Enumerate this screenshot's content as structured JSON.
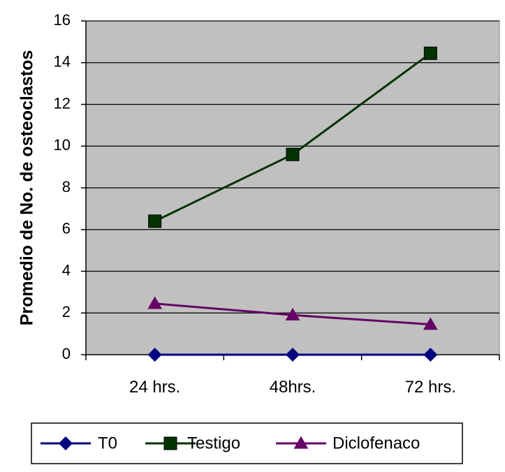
{
  "chart_data": {
    "type": "line",
    "title": "",
    "xlabel": "",
    "ylabel": "Promedio de No. de osteoclastos",
    "categories": [
      "24 hrs.",
      "48hrs.",
      "72 hrs."
    ],
    "ylim": [
      0,
      16
    ],
    "yticks": [
      0,
      2,
      4,
      6,
      8,
      10,
      12,
      14,
      16
    ],
    "grid": true,
    "legend_position": "bottom",
    "plot_background": "#c0c0c0",
    "series": [
      {
        "name": "T0",
        "values": [
          0,
          0,
          0
        ],
        "color": "#000080",
        "marker": "diamond"
      },
      {
        "name": "Testigo",
        "values": [
          6.4,
          9.6,
          14.45
        ],
        "color": "#003300",
        "marker": "square"
      },
      {
        "name": "Diclofenaco",
        "values": [
          2.45,
          1.9,
          1.45
        ],
        "color": "#660066",
        "marker": "triangle"
      }
    ]
  }
}
